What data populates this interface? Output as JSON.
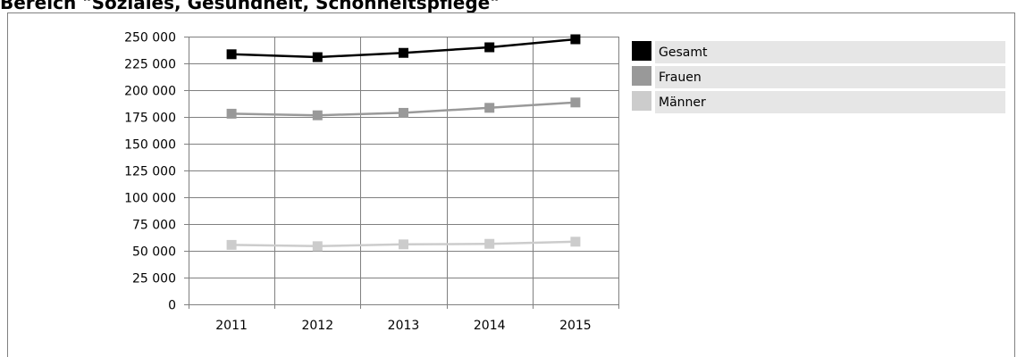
{
  "page": {
    "title": "Bereich \"Soziales, Gesundheit, Schönheitspflege\""
  },
  "colors": {
    "gesamt": "#000000",
    "frauen": "#999999",
    "maenner": "#cccccc",
    "grid": "#808080",
    "legend_bg": "#e6e6e6"
  },
  "chart_data": {
    "type": "line",
    "title": "",
    "xlabel": "",
    "ylabel": "",
    "categories": [
      "2011",
      "2012",
      "2013",
      "2014",
      "2015"
    ],
    "ylim": [
      0,
      250000
    ],
    "y_ticks": [
      {
        "value": 0,
        "label": "0"
      },
      {
        "value": 25000,
        "label": "25 000"
      },
      {
        "value": 50000,
        "label": "50 000"
      },
      {
        "value": 75000,
        "label": "75 000"
      },
      {
        "value": 100000,
        "label": "100 000"
      },
      {
        "value": 125000,
        "label": "125 000"
      },
      {
        "value": 150000,
        "label": "150 000"
      },
      {
        "value": 175000,
        "label": "175 000"
      },
      {
        "value": 200000,
        "label": "200 000"
      },
      {
        "value": 225000,
        "label": "225 000"
      },
      {
        "value": 250000,
        "label": "250 000"
      }
    ],
    "grid": true,
    "legend_position": "right",
    "series": [
      {
        "name": "Gesamt",
        "color": "#000000",
        "values": [
          233500,
          230800,
          234800,
          240000,
          247500
        ]
      },
      {
        "name": "Frauen",
        "color": "#999999",
        "values": [
          178000,
          176500,
          178800,
          183500,
          188500
        ]
      },
      {
        "name": "Männer",
        "color": "#cccccc",
        "values": [
          55500,
          54300,
          56000,
          56500,
          58500
        ]
      }
    ]
  }
}
